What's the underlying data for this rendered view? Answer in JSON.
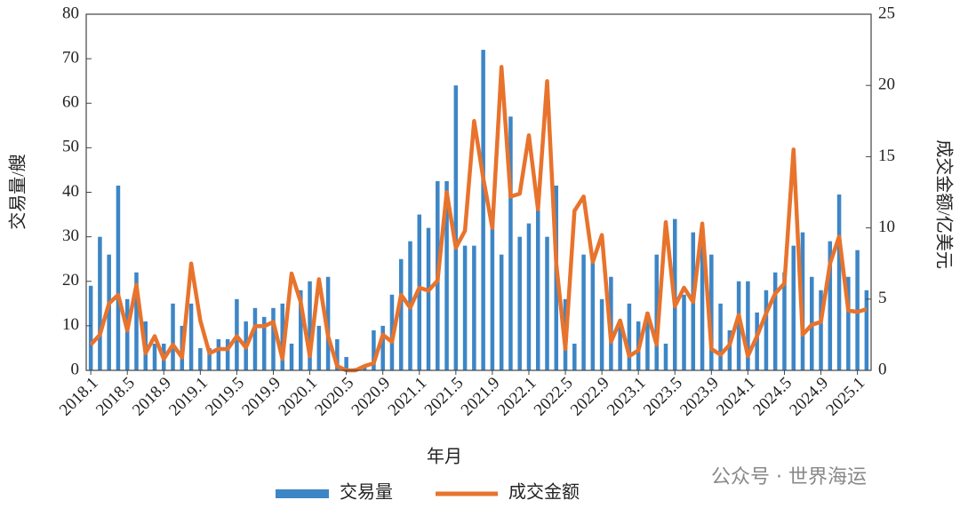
{
  "chart_data": {
    "type": "bar-line",
    "x_label": "年月",
    "y_label": "交易量/艘",
    "y2_label": "成交金额/亿美元",
    "watermark": "公众号 · 世界海运",
    "categories": [
      "2018.1",
      null,
      null,
      null,
      "2018.5",
      null,
      null,
      null,
      "2018.9",
      null,
      null,
      null,
      "2019.1",
      null,
      null,
      null,
      "2019.5",
      null,
      null,
      null,
      "2019.9",
      null,
      null,
      null,
      "2020.1",
      null,
      null,
      null,
      "2020.5",
      null,
      null,
      null,
      "2020.9",
      null,
      null,
      null,
      "2021.1",
      null,
      null,
      null,
      "2021.5",
      null,
      null,
      null,
      "2021.9",
      null,
      null,
      null,
      "2022.1",
      null,
      null,
      null,
      "2022.5",
      null,
      null,
      null,
      "2022.9",
      null,
      null,
      null,
      "2023.1",
      null,
      null,
      null,
      "2023.5",
      null,
      null,
      null,
      "2023.9",
      null,
      null,
      null,
      "2024.1",
      null,
      null,
      null,
      "2024.5",
      null,
      null,
      null,
      "2024.9",
      null,
      null,
      null,
      "2025.1",
      null
    ],
    "series": [
      {
        "name": "交易量",
        "type": "bar",
        "color": "#3d86c6",
        "values": [
          19,
          30,
          26,
          41.5,
          16,
          22,
          11,
          6,
          6,
          15,
          10,
          15,
          5,
          5,
          7,
          7,
          16,
          11,
          14,
          12,
          14,
          15,
          6,
          18,
          20,
          10,
          21,
          7,
          3,
          0.5,
          1,
          9,
          10,
          17,
          25,
          29,
          35,
          32,
          42.5,
          42.5,
          64,
          28,
          28,
          72,
          33,
          26,
          57,
          30,
          33,
          36,
          30,
          41.5,
          16,
          6,
          26,
          25,
          16,
          21,
          10,
          15,
          11,
          13,
          26,
          6,
          34,
          17,
          31,
          28,
          26,
          15,
          9,
          20,
          20,
          13,
          18,
          22,
          22,
          28,
          31,
          21,
          18,
          29,
          39.5,
          21,
          27,
          18
        ]
      },
      {
        "name": "成交金额",
        "type": "line",
        "axis": "y2",
        "color": "#e8732c",
        "values": [
          1.8,
          2.5,
          4.7,
          5.3,
          2.8,
          6,
          1.2,
          2.4,
          0.8,
          1.8,
          0.9,
          7.5,
          3.5,
          1.2,
          1.5,
          1.5,
          2.4,
          1.6,
          3.1,
          3.1,
          3.4,
          0.8,
          6.8,
          4.8,
          1,
          6.4,
          2.4,
          0.3,
          0,
          0,
          0.3,
          0.5,
          2.5,
          2,
          5.3,
          4.4,
          5.8,
          5.6,
          6.3,
          12.5,
          8.6,
          9.8,
          17.5,
          13.5,
          10,
          21.3,
          12.2,
          12.4,
          16.5,
          11.3,
          20.3,
          7.5,
          1.5,
          11.2,
          12.2,
          7.6,
          9.5,
          2,
          3.5,
          1,
          1.4,
          4,
          1.8,
          10.4,
          4.5,
          5.8,
          4.8,
          10.3,
          1.5,
          1.1,
          1.8,
          3.9,
          1,
          2.4,
          4,
          5.4,
          6.1,
          15.5,
          2.5,
          3.2,
          3.4,
          7.5,
          9.4,
          4.2,
          4.1,
          4.3
        ]
      }
    ],
    "ylim": [
      0,
      80
    ],
    "yticks": [
      0,
      10,
      20,
      30,
      40,
      50,
      60,
      70,
      80
    ],
    "y2lim": [
      0,
      25
    ],
    "y2ticks": [
      0,
      5,
      10,
      15,
      20,
      25
    ]
  }
}
